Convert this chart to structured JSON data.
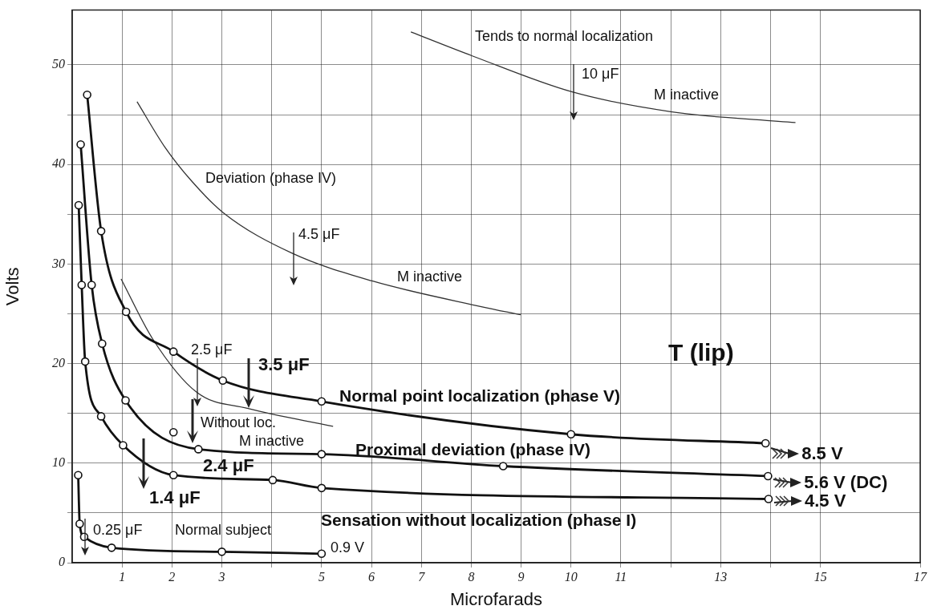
{
  "chart_data": {
    "type": "line",
    "xlabel": "Microfarads",
    "ylabel": "Volts",
    "xlim": [
      0,
      17
    ],
    "xticks": [
      1,
      2,
      3,
      {
        "value": 4,
        "label": null
      },
      5,
      6,
      7,
      8,
      9,
      10,
      11,
      {
        "value": 12,
        "label": null
      },
      13,
      {
        "value": 14,
        "label": null
      },
      15,
      17
    ],
    "ylim": [
      0,
      55.5
    ],
    "yticks": [
      0,
      {
        "value": 5,
        "label": null
      },
      10,
      {
        "value": 15,
        "label": null
      },
      20,
      {
        "value": 25,
        "label": null
      },
      30,
      {
        "value": 35,
        "label": null
      },
      40,
      {
        "value": 45,
        "label": null
      },
      50
    ],
    "grid": true,
    "series": [
      {
        "name": "Normal point localization (phase V)",
        "color": "#111111",
        "marker": "circle",
        "x": [
          0.3,
          0.58,
          1.08,
          2.03,
          3.02,
          5,
          10,
          13.9
        ],
        "values": [
          47.0,
          33.3,
          25.2,
          21.2,
          18.3,
          16.2,
          12.9,
          12.0
        ]
      },
      {
        "name": "Proximal deviation (phase IV)",
        "color": "#111111",
        "marker": "circle",
        "x": [
          0.17,
          0.39,
          0.6,
          1.07,
          2.53,
          5,
          8.64,
          13.95
        ],
        "values": [
          42.0,
          27.9,
          22.0,
          16.3,
          11.4,
          10.9,
          9.7,
          8.7
        ]
      },
      {
        "type": "scatter",
        "color": "#111111",
        "marker": "circle",
        "x": [
          2.03
        ],
        "values": [
          13.1
        ]
      },
      {
        "name": "Sensation without localization (phase I)",
        "color": "#111111",
        "marker": "circle",
        "x": [
          0.13,
          0.19,
          0.26,
          0.58,
          1.02,
          2.03,
          4.02,
          5,
          13.96
        ],
        "values": [
          35.9,
          27.9,
          20.2,
          14.7,
          11.8,
          8.8,
          8.3,
          7.5,
          6.4
        ]
      },
      {
        "name": "Normal subject",
        "color": "#111111",
        "marker": "circle",
        "x": [
          0.12,
          0.15,
          0.24,
          0.79,
          3,
          5
        ],
        "values": [
          8.8,
          3.9,
          2.6,
          1.5,
          1.1,
          0.9
        ]
      },
      {
        "name": "Deviation (phase IV)",
        "color": "#333333",
        "marker": "none",
        "x": [
          1.3,
          1.85,
          2.4,
          3.04,
          4.4,
          6.01,
          8.22,
          8.99
        ],
        "values": [
          46.3,
          41.8,
          38.3,
          35.1,
          31.1,
          28.3,
          25.7,
          24.9
        ]
      },
      {
        "name": "Tends to normal localization",
        "color": "#333333",
        "marker": "none",
        "x": [
          6.79,
          8.02,
          10.01,
          12.0,
          14.5
        ],
        "values": [
          53.3,
          50.9,
          47.3,
          45.3,
          44.2
        ]
      },
      {
        "name": "Without loc.",
        "color": "#333333",
        "marker": "none",
        "x": [
          0.98,
          1.61,
          2.5,
          3.51,
          5.23
        ],
        "values": [
          28.5,
          22.5,
          17.1,
          15.5,
          13.7
        ]
      }
    ],
    "annotations": [
      "10 μF",
      "M inactive",
      "4.5 μF",
      "M inactive",
      "2.5 μF",
      "3.5 μF",
      "M inactive",
      "2.4 μF",
      "1.4 μF",
      "0.25 μF",
      {
        "text": "0.9 V",
        "x": 5,
        "y": 0.9
      },
      "T (lip)",
      {
        "text": "8.5 V",
        "x": 13.9,
        "y": 12.0
      },
      {
        "text": "5.6 V (DC)",
        "x": 13.95,
        "y": 8.7
      },
      {
        "text": "4.5 V",
        "x": 13.96,
        "y": 6.4
      }
    ]
  }
}
